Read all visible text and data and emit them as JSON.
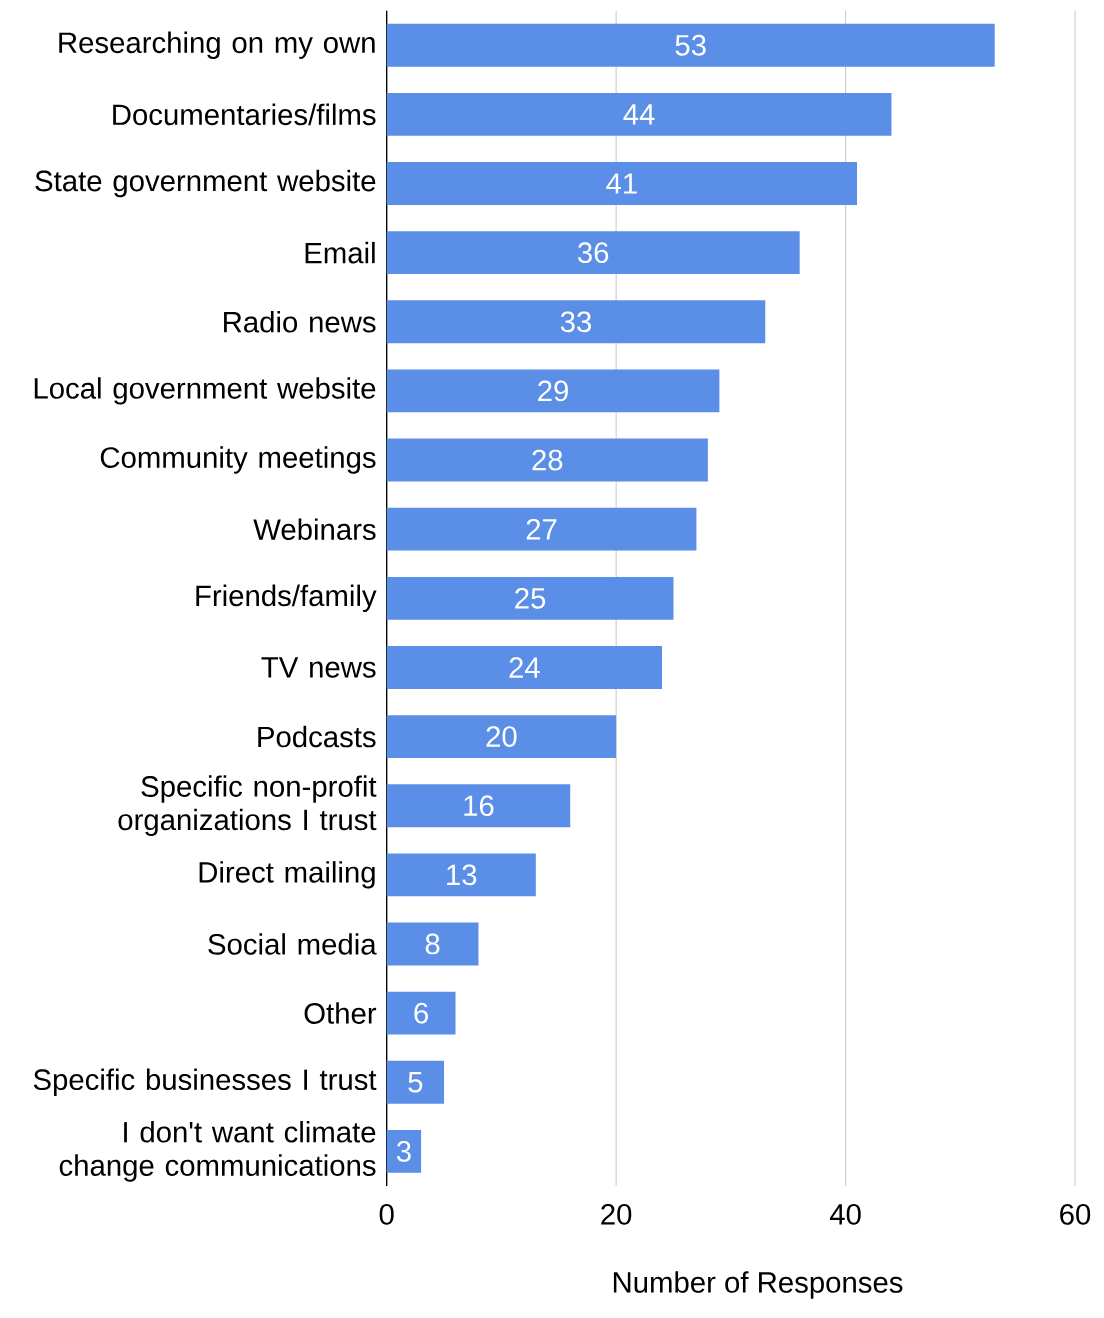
{
  "chart_data": {
    "type": "bar",
    "orientation": "horizontal",
    "categories": [
      "Researching on my own",
      "Documentaries/films",
      "State government website",
      "Email",
      "Radio news",
      "Local government website",
      "Community meetings",
      "Webinars",
      "Friends/family",
      "TV news",
      "Podcasts",
      "Specific non-profit organizations I trust",
      "Direct mailing",
      "Social media",
      "Other",
      "Specific businesses I trust",
      "I don't want climate change communications"
    ],
    "values": [
      53,
      44,
      41,
      36,
      33,
      29,
      28,
      27,
      25,
      24,
      20,
      16,
      13,
      8,
      6,
      5,
      3
    ],
    "color": "#5b8ee6",
    "xlim": [
      0,
      60
    ],
    "xticks": [
      0,
      20,
      40,
      60
    ],
    "grid": "x",
    "data_labels": true,
    "xlabel": "Number of Responses"
  }
}
